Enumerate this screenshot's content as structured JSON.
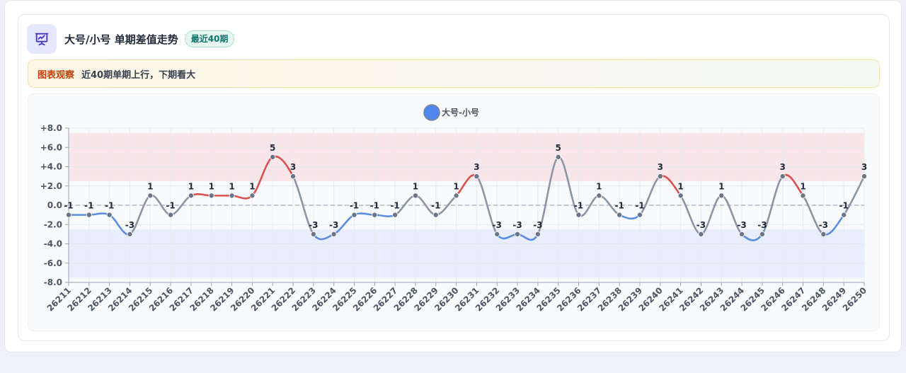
{
  "header": {
    "title": "大号/小号 单期差值走势",
    "badge": "最近40期",
    "icon": "presentation-chart-icon"
  },
  "insight": {
    "label": "图表观察",
    "text": "近40期单期上行，下期看大"
  },
  "colors": {
    "up": "#dc5050",
    "down": "#5b8de0",
    "flat": "#8a95a5",
    "legend": "#4f86f0",
    "band_high": "#f9e6ea",
    "band_low": "#e8eefb",
    "badge_text": "#0f766e",
    "insight_label": "#c2410c"
  },
  "chart_data": {
    "type": "line",
    "legend": [
      "大号-小号"
    ],
    "legend_position": "top-center",
    "x": [
      "26211",
      "26212",
      "26213",
      "26214",
      "26215",
      "26216",
      "26217",
      "26218",
      "26219",
      "26220",
      "26221",
      "26222",
      "26223",
      "26224",
      "26225",
      "26226",
      "26227",
      "26228",
      "26229",
      "26230",
      "26231",
      "26232",
      "26233",
      "26234",
      "26235",
      "26236",
      "26237",
      "26238",
      "26239",
      "26240",
      "26241",
      "26242",
      "26243",
      "26244",
      "26245",
      "26246",
      "26247",
      "26248",
      "26249",
      "26250"
    ],
    "series": [
      {
        "name": "大号-小号",
        "values": [
          -1,
          -1,
          -1,
          -3,
          1,
          -1,
          1,
          1,
          1,
          1,
          5,
          3,
          -3,
          -3,
          -1,
          -1,
          -1,
          1,
          -1,
          1,
          3,
          -3,
          -3,
          -3,
          5,
          -1,
          1,
          -1,
          -1,
          3,
          1,
          -3,
          1,
          -3,
          -3,
          3,
          1,
          -3,
          -1,
          3
        ]
      }
    ],
    "y_ticks": [
      "+8.0",
      "+6.0",
      "+4.0",
      "+2.0",
      "0.0",
      "-2.0",
      "-4.0",
      "-6.0",
      "-8.0"
    ],
    "ylim": [
      -8,
      8
    ],
    "bands": [
      {
        "from": 2.5,
        "to": 7.5,
        "color": "band_high"
      },
      {
        "from": -7.5,
        "to": -2.5,
        "color": "band_low"
      }
    ],
    "zero_line": "dashed",
    "grid": true
  }
}
